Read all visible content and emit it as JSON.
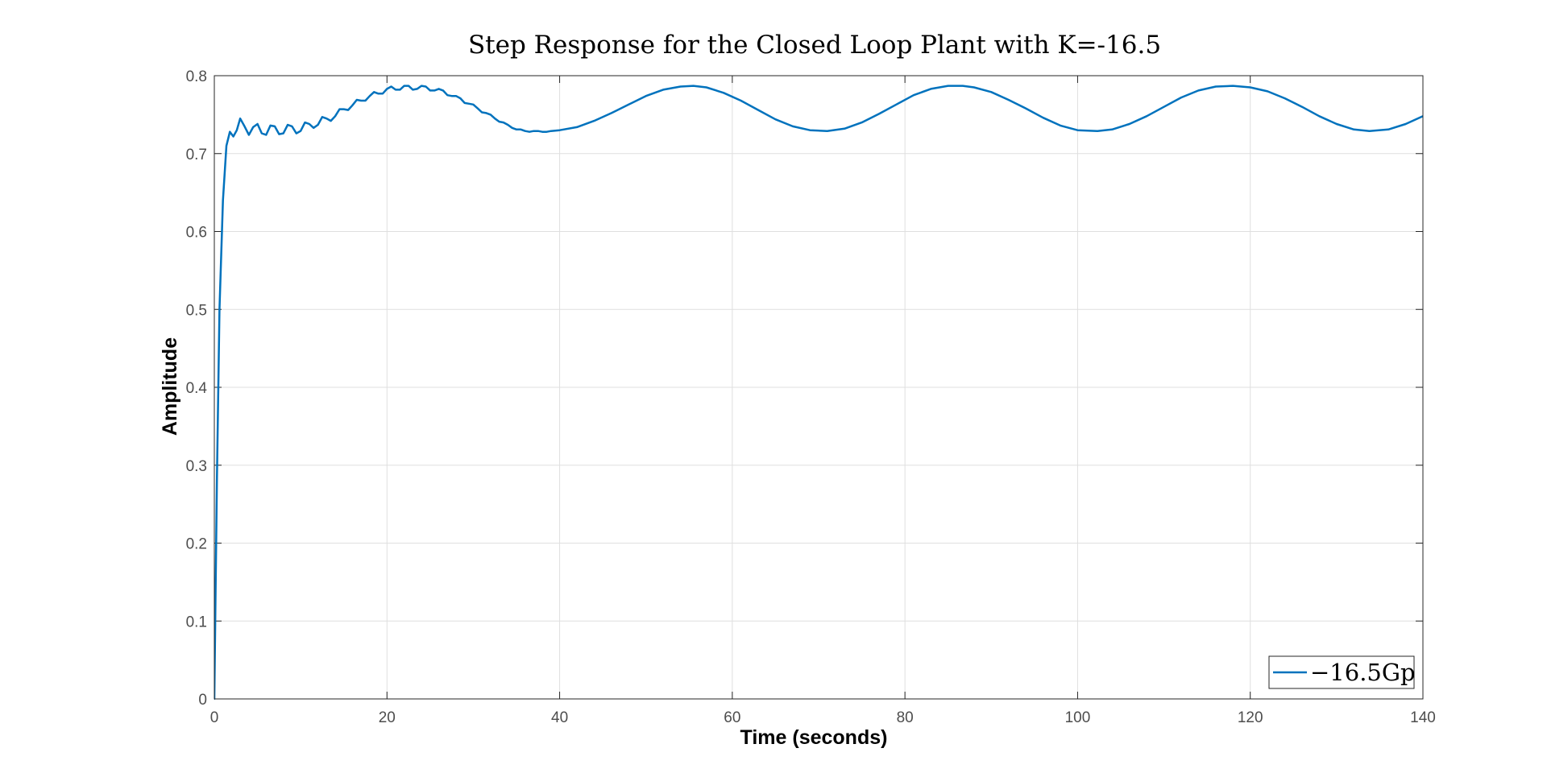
{
  "chart_data": {
    "type": "line",
    "title": "Step Response for the Closed Loop Plant with K=-16.5",
    "xlabel": "Time (seconds)",
    "ylabel": "Amplitude",
    "xlim": [
      0,
      140
    ],
    "ylim": [
      0,
      0.8
    ],
    "x_ticks": [
      0,
      20,
      40,
      60,
      80,
      100,
      120,
      140
    ],
    "y_ticks": [
      0,
      0.1,
      0.2,
      0.3,
      0.4,
      0.5,
      0.6,
      0.7,
      0.8
    ],
    "x_tick_labels": [
      "0",
      "20",
      "40",
      "60",
      "80",
      "100",
      "120",
      "140"
    ],
    "y_tick_labels": [
      "0",
      "0.1",
      "0.2",
      "0.3",
      "0.4",
      "0.5",
      "0.6",
      "0.7",
      "0.8"
    ],
    "grid": true,
    "legend_position": "bottom-right",
    "series": [
      {
        "name": "−16.5Gp",
        "color": "#0072BD",
        "x": [
          0,
          0.3,
          0.6,
          1.0,
          1.4,
          1.8,
          2.2,
          2.6,
          3.0,
          3.5,
          4.0,
          4.5,
          5.0,
          5.5,
          6.0,
          6.5,
          7.0,
          7.5,
          8.0,
          8.5,
          9.0,
          9.5,
          10.0,
          10.5,
          11.0,
          11.5,
          12.0,
          12.5,
          13.0,
          13.5,
          14.0,
          14.5,
          15.0,
          15.5,
          16.0,
          16.5,
          17.0,
          17.5,
          18.0,
          18.5,
          19.0,
          19.5,
          20.0,
          20.5,
          21.0,
          21.5,
          22.0,
          22.5,
          23.0,
          23.5,
          24.0,
          24.5,
          25.0,
          25.5,
          26.0,
          26.5,
          27.0,
          27.5,
          28.0,
          28.5,
          29.0,
          29.5,
          30.0,
          30.5,
          31.0,
          31.5,
          32.0,
          32.5,
          33.0,
          33.5,
          34.0,
          34.5,
          35.0,
          35.5,
          36.0,
          36.5,
          37.0,
          37.5,
          38.0,
          38.5,
          39.0,
          40.0,
          42.0,
          44.0,
          46.0,
          48.0,
          50.0,
          52.0,
          54.0,
          55.5,
          57.0,
          59.0,
          61.0,
          63.0,
          65.0,
          67.0,
          69.0,
          71.0,
          73.0,
          75.0,
          77.0,
          79.0,
          81.0,
          83.0,
          85.0,
          86.7,
          88.0,
          90.0,
          92.0,
          94.0,
          96.0,
          98.0,
          100.0,
          102.3,
          104.0,
          106.0,
          108.0,
          110.0,
          112.0,
          114.0,
          116.0,
          118.0,
          120.0,
          122.0,
          124.0,
          126.0,
          128.0,
          130.0,
          132.0,
          133.8,
          136.0,
          138.0,
          140.0
        ],
        "y": [
          0.0,
          0.28,
          0.5,
          0.64,
          0.71,
          0.728,
          0.722,
          0.73,
          0.745,
          0.735,
          0.724,
          0.734,
          0.738,
          0.726,
          0.724,
          0.736,
          0.735,
          0.725,
          0.726,
          0.737,
          0.735,
          0.726,
          0.729,
          0.74,
          0.738,
          0.733,
          0.737,
          0.747,
          0.745,
          0.742,
          0.748,
          0.757,
          0.757,
          0.756,
          0.762,
          0.769,
          0.768,
          0.768,
          0.774,
          0.779,
          0.777,
          0.777,
          0.783,
          0.786,
          0.782,
          0.782,
          0.787,
          0.787,
          0.782,
          0.783,
          0.787,
          0.786,
          0.781,
          0.781,
          0.783,
          0.781,
          0.775,
          0.774,
          0.774,
          0.771,
          0.765,
          0.764,
          0.763,
          0.758,
          0.753,
          0.752,
          0.75,
          0.745,
          0.741,
          0.74,
          0.737,
          0.733,
          0.731,
          0.731,
          0.729,
          0.728,
          0.729,
          0.729,
          0.728,
          0.728,
          0.729,
          0.73,
          0.734,
          0.742,
          0.752,
          0.763,
          0.774,
          0.782,
          0.786,
          0.787,
          0.785,
          0.778,
          0.768,
          0.756,
          0.744,
          0.735,
          0.73,
          0.729,
          0.732,
          0.74,
          0.751,
          0.763,
          0.775,
          0.783,
          0.787,
          0.787,
          0.785,
          0.779,
          0.769,
          0.758,
          0.746,
          0.736,
          0.73,
          0.729,
          0.731,
          0.738,
          0.748,
          0.76,
          0.772,
          0.781,
          0.786,
          0.787,
          0.785,
          0.78,
          0.771,
          0.76,
          0.748,
          0.738,
          0.731,
          0.729,
          0.731,
          0.738,
          0.748
        ]
      }
    ]
  }
}
